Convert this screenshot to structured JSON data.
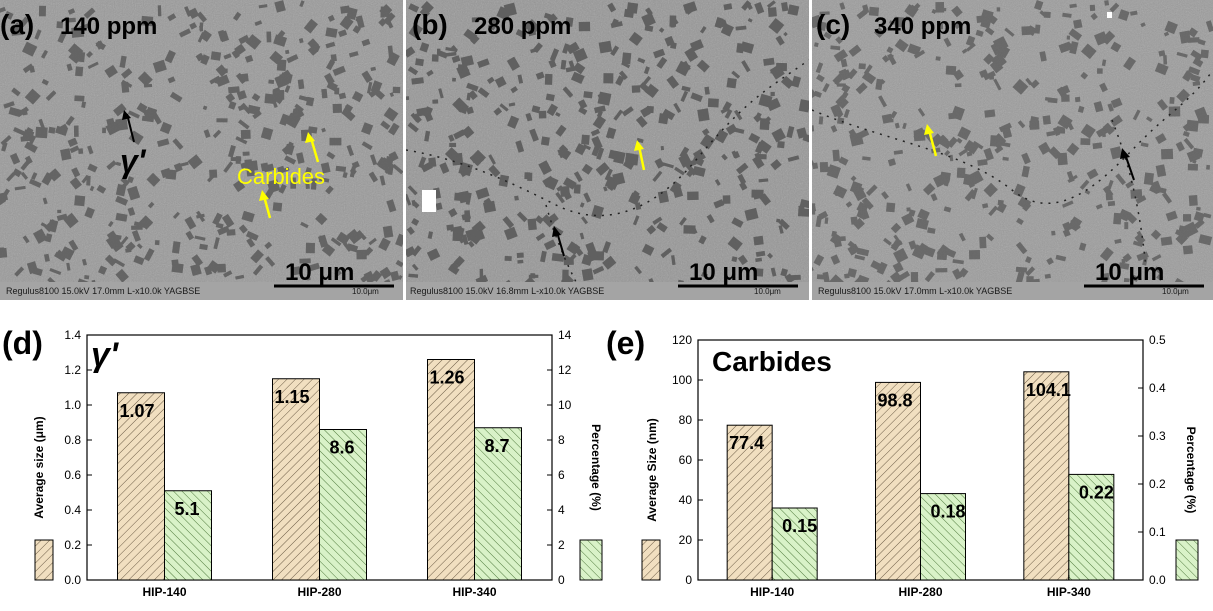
{
  "micrographs": [
    {
      "label": "(a)",
      "conc": "140 ppm",
      "scale_text": "10 μm",
      "footer": "Regulus8100 15.0kV 17.0mm L-x10.0k YAGBSE",
      "footer_right": "10.0μm",
      "annotation_gamma": "γ'",
      "annotation_carbides": "Carbides"
    },
    {
      "label": "(b)",
      "conc": "280 ppm",
      "scale_text": "10 μm",
      "footer": "Regulus8100 15.0kV 16.8mm L-x10.0k YAGBSE",
      "footer_right": "10.0μm"
    },
    {
      "label": "(c)",
      "conc": "340 ppm",
      "scale_text": "10 μm",
      "footer": "Regulus8100 15.0kV 17.0mm L-x10.0k YAGBSE",
      "footer_right": "10.0μm"
    }
  ],
  "colors": {
    "size_bar": "#f1dfc0",
    "size_hatch": "#6b5b45",
    "pct_bar": "#d9f2c8",
    "pct_hatch": "#4f7a3c",
    "arrow_black": "#000000",
    "arrow_yellow": "#ffff00"
  },
  "chart_data": [
    {
      "type": "bar",
      "panel_label": "(d)",
      "title": "γ'",
      "categories": [
        "HIP-140",
        "HIP-280",
        "HIP-340"
      ],
      "ylabel_left": "Average size (μm)",
      "ylabel_right": "Percentage (%)",
      "ylim_left": [
        0.0,
        1.4
      ],
      "ylim_right": [
        0,
        14
      ],
      "yticks_left": [
        "0.0",
        "0.2",
        "0.4",
        "0.6",
        "0.8",
        "1.0",
        "1.2",
        "1.4"
      ],
      "yticks_right": [
        "0",
        "2",
        "4",
        "6",
        "8",
        "10",
        "12",
        "14"
      ],
      "series": [
        {
          "axis": "left",
          "values": [
            1.07,
            1.15,
            1.26
          ],
          "labels": [
            "1.07",
            "1.15",
            "1.26"
          ]
        },
        {
          "axis": "right",
          "values": [
            5.1,
            8.6,
            8.7
          ],
          "labels": [
            "5.1",
            "8.6",
            "8.7"
          ]
        }
      ]
    },
    {
      "type": "bar",
      "panel_label": "(e)",
      "title": "Carbides",
      "categories": [
        "HIP-140",
        "HIP-280",
        "HIP-340"
      ],
      "ylabel_left": "Average Size (nm)",
      "ylabel_right": "Percentage (%)",
      "ylim_left": [
        0,
        120
      ],
      "ylim_right": [
        0.0,
        0.5
      ],
      "yticks_left": [
        "0",
        "20",
        "40",
        "60",
        "80",
        "100",
        "120"
      ],
      "yticks_right": [
        "0.0",
        "0.1",
        "0.2",
        "0.3",
        "0.4",
        "0.5"
      ],
      "series": [
        {
          "axis": "left",
          "values": [
            77.4,
            98.8,
            104.1
          ],
          "labels": [
            "77.4",
            "98.8",
            "104.1"
          ]
        },
        {
          "axis": "right",
          "values": [
            0.15,
            0.18,
            0.22
          ],
          "labels": [
            "0.15",
            "0.18",
            "0.22"
          ]
        }
      ]
    }
  ]
}
